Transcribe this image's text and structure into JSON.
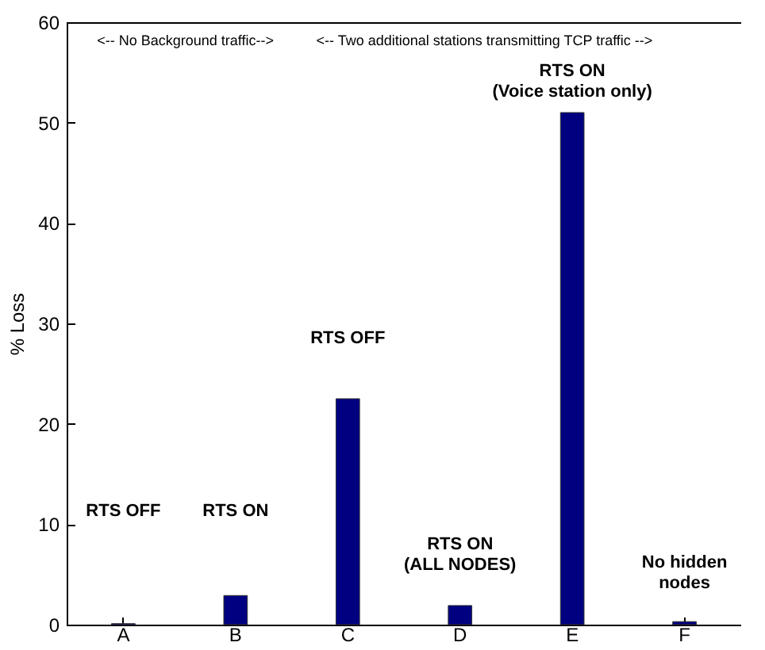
{
  "chart_data": {
    "type": "bar",
    "ylabel": "% Loss",
    "categories": [
      "A",
      "B",
      "C",
      "D",
      "E",
      "F"
    ],
    "values": [
      0.1,
      2.9,
      22.5,
      1.9,
      51,
      0.3
    ],
    "color": "#000080",
    "ylim": [
      0,
      60
    ],
    "yticks": [
      0,
      10,
      20,
      30,
      40,
      50,
      60
    ],
    "grid": false,
    "annotations": [
      "RTS OFF",
      "RTS ON",
      "RTS OFF",
      "RTS ON\n(ALL NODES)",
      "RTS ON\n(Voice station only)",
      "No hidden\nnodes",
      "<-- No Background traffic-->",
      "<-- Two additional stations transmitting TCP traffic -->"
    ]
  }
}
